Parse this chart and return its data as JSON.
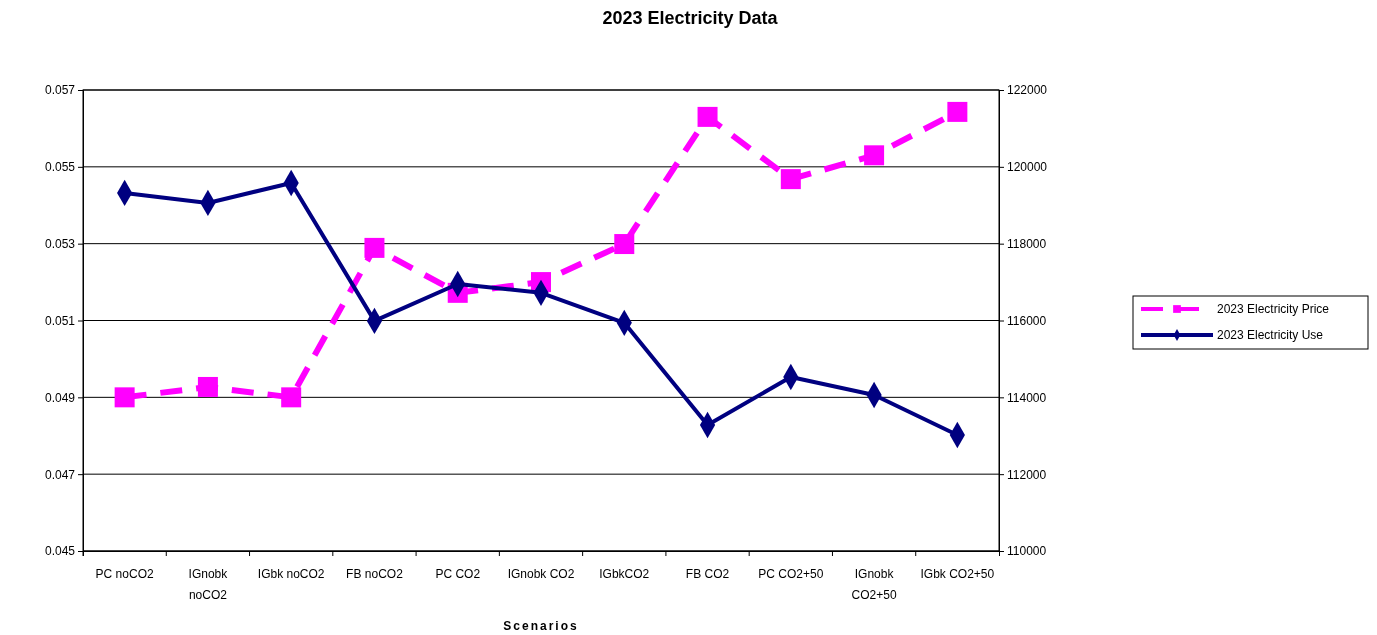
{
  "chart_data": {
    "type": "line",
    "title": "2023 Electricity Data",
    "xlabel": "Scenarios",
    "categories": [
      "PC noCO2",
      "IGnobk noCO2",
      "IGbk noCO2",
      "FB noCO2",
      "PC CO2",
      "IGnobk CO2",
      "IGbkCO2",
      "FB CO2",
      "PC CO2+50",
      "IGnobk CO2+50",
      "IGbk CO2+50"
    ],
    "series": [
      {
        "name": "2023 Electricity Price",
        "color": "#ff00ff",
        "marker": "square",
        "line_style": "dashed",
        "values": [
          0.049,
          0.04927,
          0.049,
          0.05289,
          0.05172,
          0.052,
          0.05299,
          0.0563,
          0.05468,
          0.0553,
          0.05643
        ]
      },
      {
        "name": "2023 Electricity Use",
        "color": "#000080",
        "marker": "diamond",
        "line_style": "solid",
        "axis": "y2",
        "values": [
          119320,
          119060,
          119580,
          115990,
          116950,
          116720,
          115940,
          113280,
          114530,
          114060,
          113020
        ]
      }
    ],
    "ylim": [
      0.045,
      0.057
    ],
    "yticks": [
      0.045,
      0.047,
      0.049,
      0.051,
      0.053,
      0.055,
      0.057
    ],
    "y2lim": [
      110000,
      122000
    ],
    "y2ticks": [
      110000,
      112000,
      114000,
      116000,
      118000,
      120000,
      122000
    ],
    "grid": "y",
    "legend": "right"
  }
}
